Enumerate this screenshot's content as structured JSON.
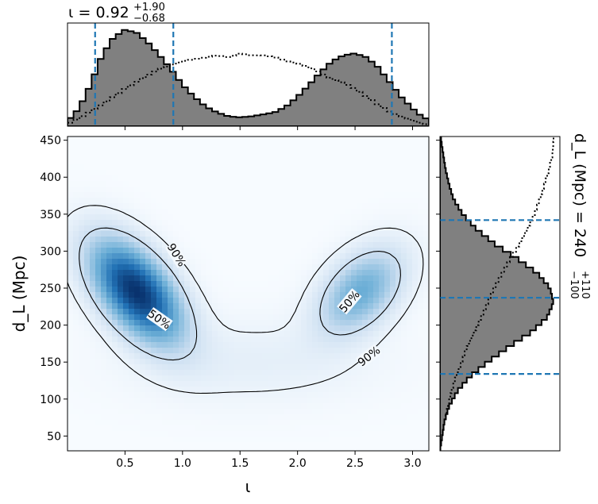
{
  "chart_data": {
    "type": "corner",
    "panels": {
      "joint": {
        "type": "heatmap",
        "xlabel": "ι",
        "ylabel": "d_L (Mpc)",
        "xlim": [
          0,
          3.14159
        ],
        "ylim": [
          30,
          455
        ],
        "xticks": [
          0.5,
          1.0,
          1.5,
          2.0,
          2.5,
          3.0
        ],
        "yticks": [
          50,
          100,
          150,
          200,
          250,
          300,
          350,
          400,
          450
        ],
        "colormap": "Blues",
        "density_modes": [
          {
            "x": 0.6,
            "y": 245,
            "sx": 0.26,
            "sy": 45,
            "rho": -0.55,
            "weight": 1.0
          },
          {
            "x": 2.55,
            "y": 245,
            "sx": 0.24,
            "sy": 38,
            "rho": 0.45,
            "weight": 0.45
          },
          {
            "x": 1.6,
            "y": 150,
            "sx": 0.7,
            "sy": 38,
            "rho": 0.0,
            "weight": 0.06
          }
        ],
        "contours": [
          {
            "level": "90%",
            "label": "90%"
          },
          {
            "level": "50%",
            "label": "50%"
          }
        ]
      },
      "top_marginal": {
        "type": "histogram",
        "variable": "ι",
        "title_value": "0.92",
        "title_upper": "+1.90",
        "title_lower": "−0.68",
        "quantiles": [
          0.24,
          0.92,
          2.82
        ],
        "posterior": {
          "x": [
            0.0,
            0.1,
            0.2,
            0.3,
            0.4,
            0.5,
            0.6,
            0.7,
            0.8,
            0.9,
            1.0,
            1.1,
            1.2,
            1.3,
            1.4,
            1.5,
            1.6,
            1.7,
            1.8,
            1.9,
            2.0,
            2.1,
            2.2,
            2.3,
            2.4,
            2.5,
            2.6,
            2.7,
            2.8,
            2.9,
            3.0,
            3.1
          ],
          "density": [
            0.05,
            0.18,
            0.42,
            0.72,
            0.9,
            0.98,
            0.95,
            0.85,
            0.72,
            0.58,
            0.42,
            0.3,
            0.2,
            0.14,
            0.1,
            0.09,
            0.1,
            0.12,
            0.14,
            0.2,
            0.3,
            0.42,
            0.55,
            0.66,
            0.72,
            0.74,
            0.7,
            0.6,
            0.45,
            0.3,
            0.18,
            0.08
          ]
        },
        "prior": {
          "x": [
            0.0,
            0.1,
            0.2,
            0.3,
            0.4,
            0.5,
            0.6,
            0.7,
            0.8,
            0.9,
            1.0,
            1.1,
            1.2,
            1.3,
            1.4,
            1.5,
            1.6,
            1.7,
            1.8,
            1.9,
            2.0,
            2.1,
            2.2,
            2.3,
            2.4,
            2.5,
            2.6,
            2.7,
            2.8,
            2.9,
            3.0,
            3.1
          ],
          "density": [
            0.02,
            0.08,
            0.15,
            0.22,
            0.3,
            0.38,
            0.45,
            0.52,
            0.58,
            0.62,
            0.66,
            0.68,
            0.7,
            0.72,
            0.7,
            0.74,
            0.72,
            0.72,
            0.7,
            0.66,
            0.64,
            0.6,
            0.54,
            0.48,
            0.44,
            0.38,
            0.3,
            0.22,
            0.15,
            0.1,
            0.06,
            0.02
          ]
        }
      },
      "right_marginal": {
        "type": "histogram",
        "orientation": "horizontal",
        "variable": "d_L (Mpc)",
        "title_value": "240",
        "title_upper": "+110",
        "title_lower": "−100",
        "quantiles": [
          134,
          237,
          342
        ],
        "posterior": {
          "y": [
            30,
            50,
            70,
            90,
            110,
            130,
            150,
            170,
            190,
            210,
            230,
            250,
            270,
            290,
            310,
            330,
            350,
            370,
            390,
            410,
            430,
            450
          ],
          "density": [
            0.0,
            0.02,
            0.04,
            0.08,
            0.15,
            0.26,
            0.42,
            0.6,
            0.8,
            0.94,
            1.0,
            0.97,
            0.86,
            0.68,
            0.48,
            0.32,
            0.2,
            0.12,
            0.08,
            0.05,
            0.03,
            0.01
          ]
        },
        "prior": {
          "y": [
            30,
            50,
            70,
            90,
            110,
            130,
            150,
            170,
            190,
            210,
            230,
            250,
            270,
            290,
            310,
            330,
            350,
            370,
            390,
            410,
            430,
            450
          ],
          "density": [
            0.0,
            0.02,
            0.04,
            0.07,
            0.1,
            0.14,
            0.19,
            0.24,
            0.3,
            0.36,
            0.42,
            0.48,
            0.55,
            0.62,
            0.7,
            0.77,
            0.83,
            0.88,
            0.92,
            0.96,
            0.99,
            1.0
          ]
        }
      }
    },
    "colors": {
      "posterior_fill": "#808080",
      "quantile_line": "#1f77b4",
      "contour": "#000000",
      "heatmap_peak": "#08306b"
    }
  }
}
